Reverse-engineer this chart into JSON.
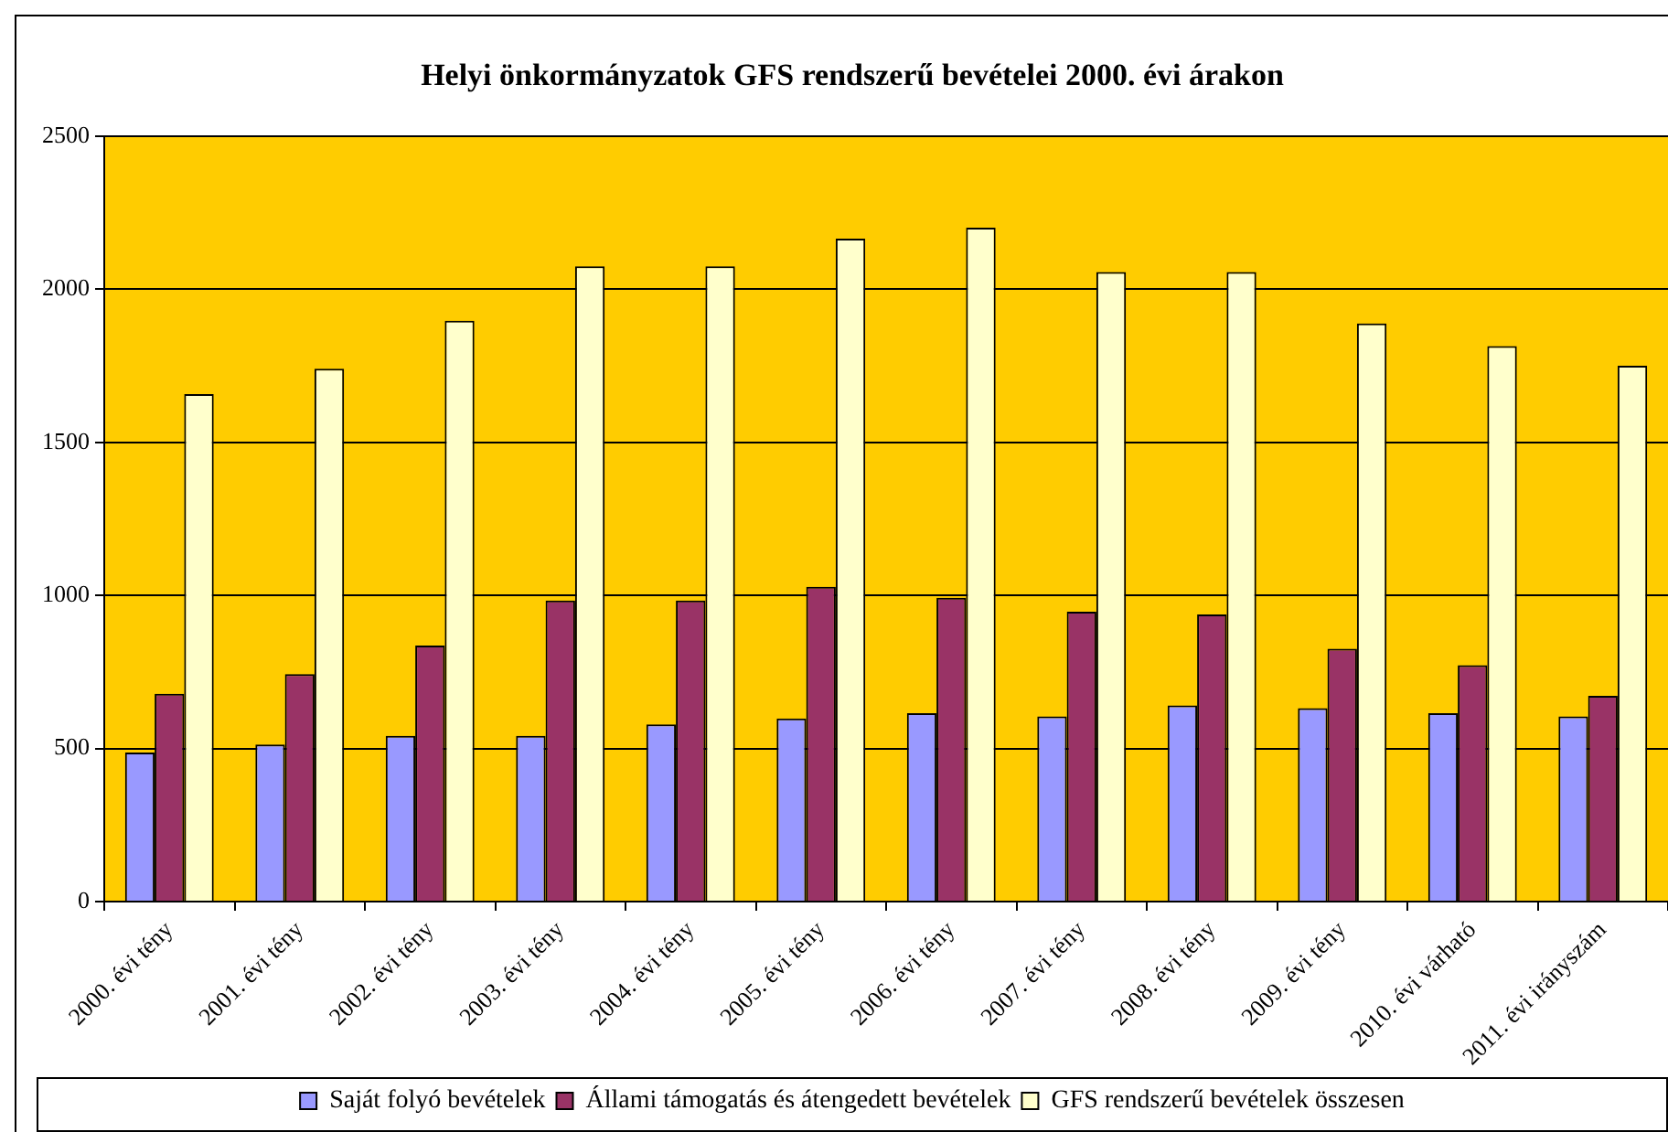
{
  "chart_data": {
    "type": "bar",
    "title": "Helyi önkormányzatok GFS rendszerű bevételei 2000. évi árakon",
    "categories": [
      "2000. évi tény",
      "2001. évi tény",
      "2002. évi tény",
      "2003. évi tény",
      "2004. évi tény",
      "2005. évi tény",
      "2006. évi tény",
      "2007. évi tény",
      "2008. évi tény",
      "2009. évi tény",
      "2010. évi várható",
      "2011. évi irányszám"
    ],
    "series": [
      {
        "name": "Saját folyó bevételek",
        "color": "#9999ff",
        "values": [
          487,
          513,
          541,
          541,
          579,
          598,
          615,
          605,
          641,
          632,
          615,
          605
        ]
      },
      {
        "name": "Állami támogatás és átengedett bevételek",
        "color": "#993366",
        "values": [
          679,
          743,
          836,
          983,
          983,
          1028,
          992,
          947,
          938,
          826,
          772,
          672
        ]
      },
      {
        "name": "GFS rendszerű bevételek összesen",
        "color": "#ffffcc",
        "values": [
          1657,
          1740,
          1897,
          2075,
          2075,
          2165,
          2201,
          2056,
          2056,
          1888,
          1814,
          1750
        ]
      }
    ],
    "ylim": [
      0,
      2500
    ],
    "yticks": [
      0,
      500,
      1000,
      1500,
      2000,
      2500
    ],
    "grid": "y",
    "legend": "bottom"
  }
}
